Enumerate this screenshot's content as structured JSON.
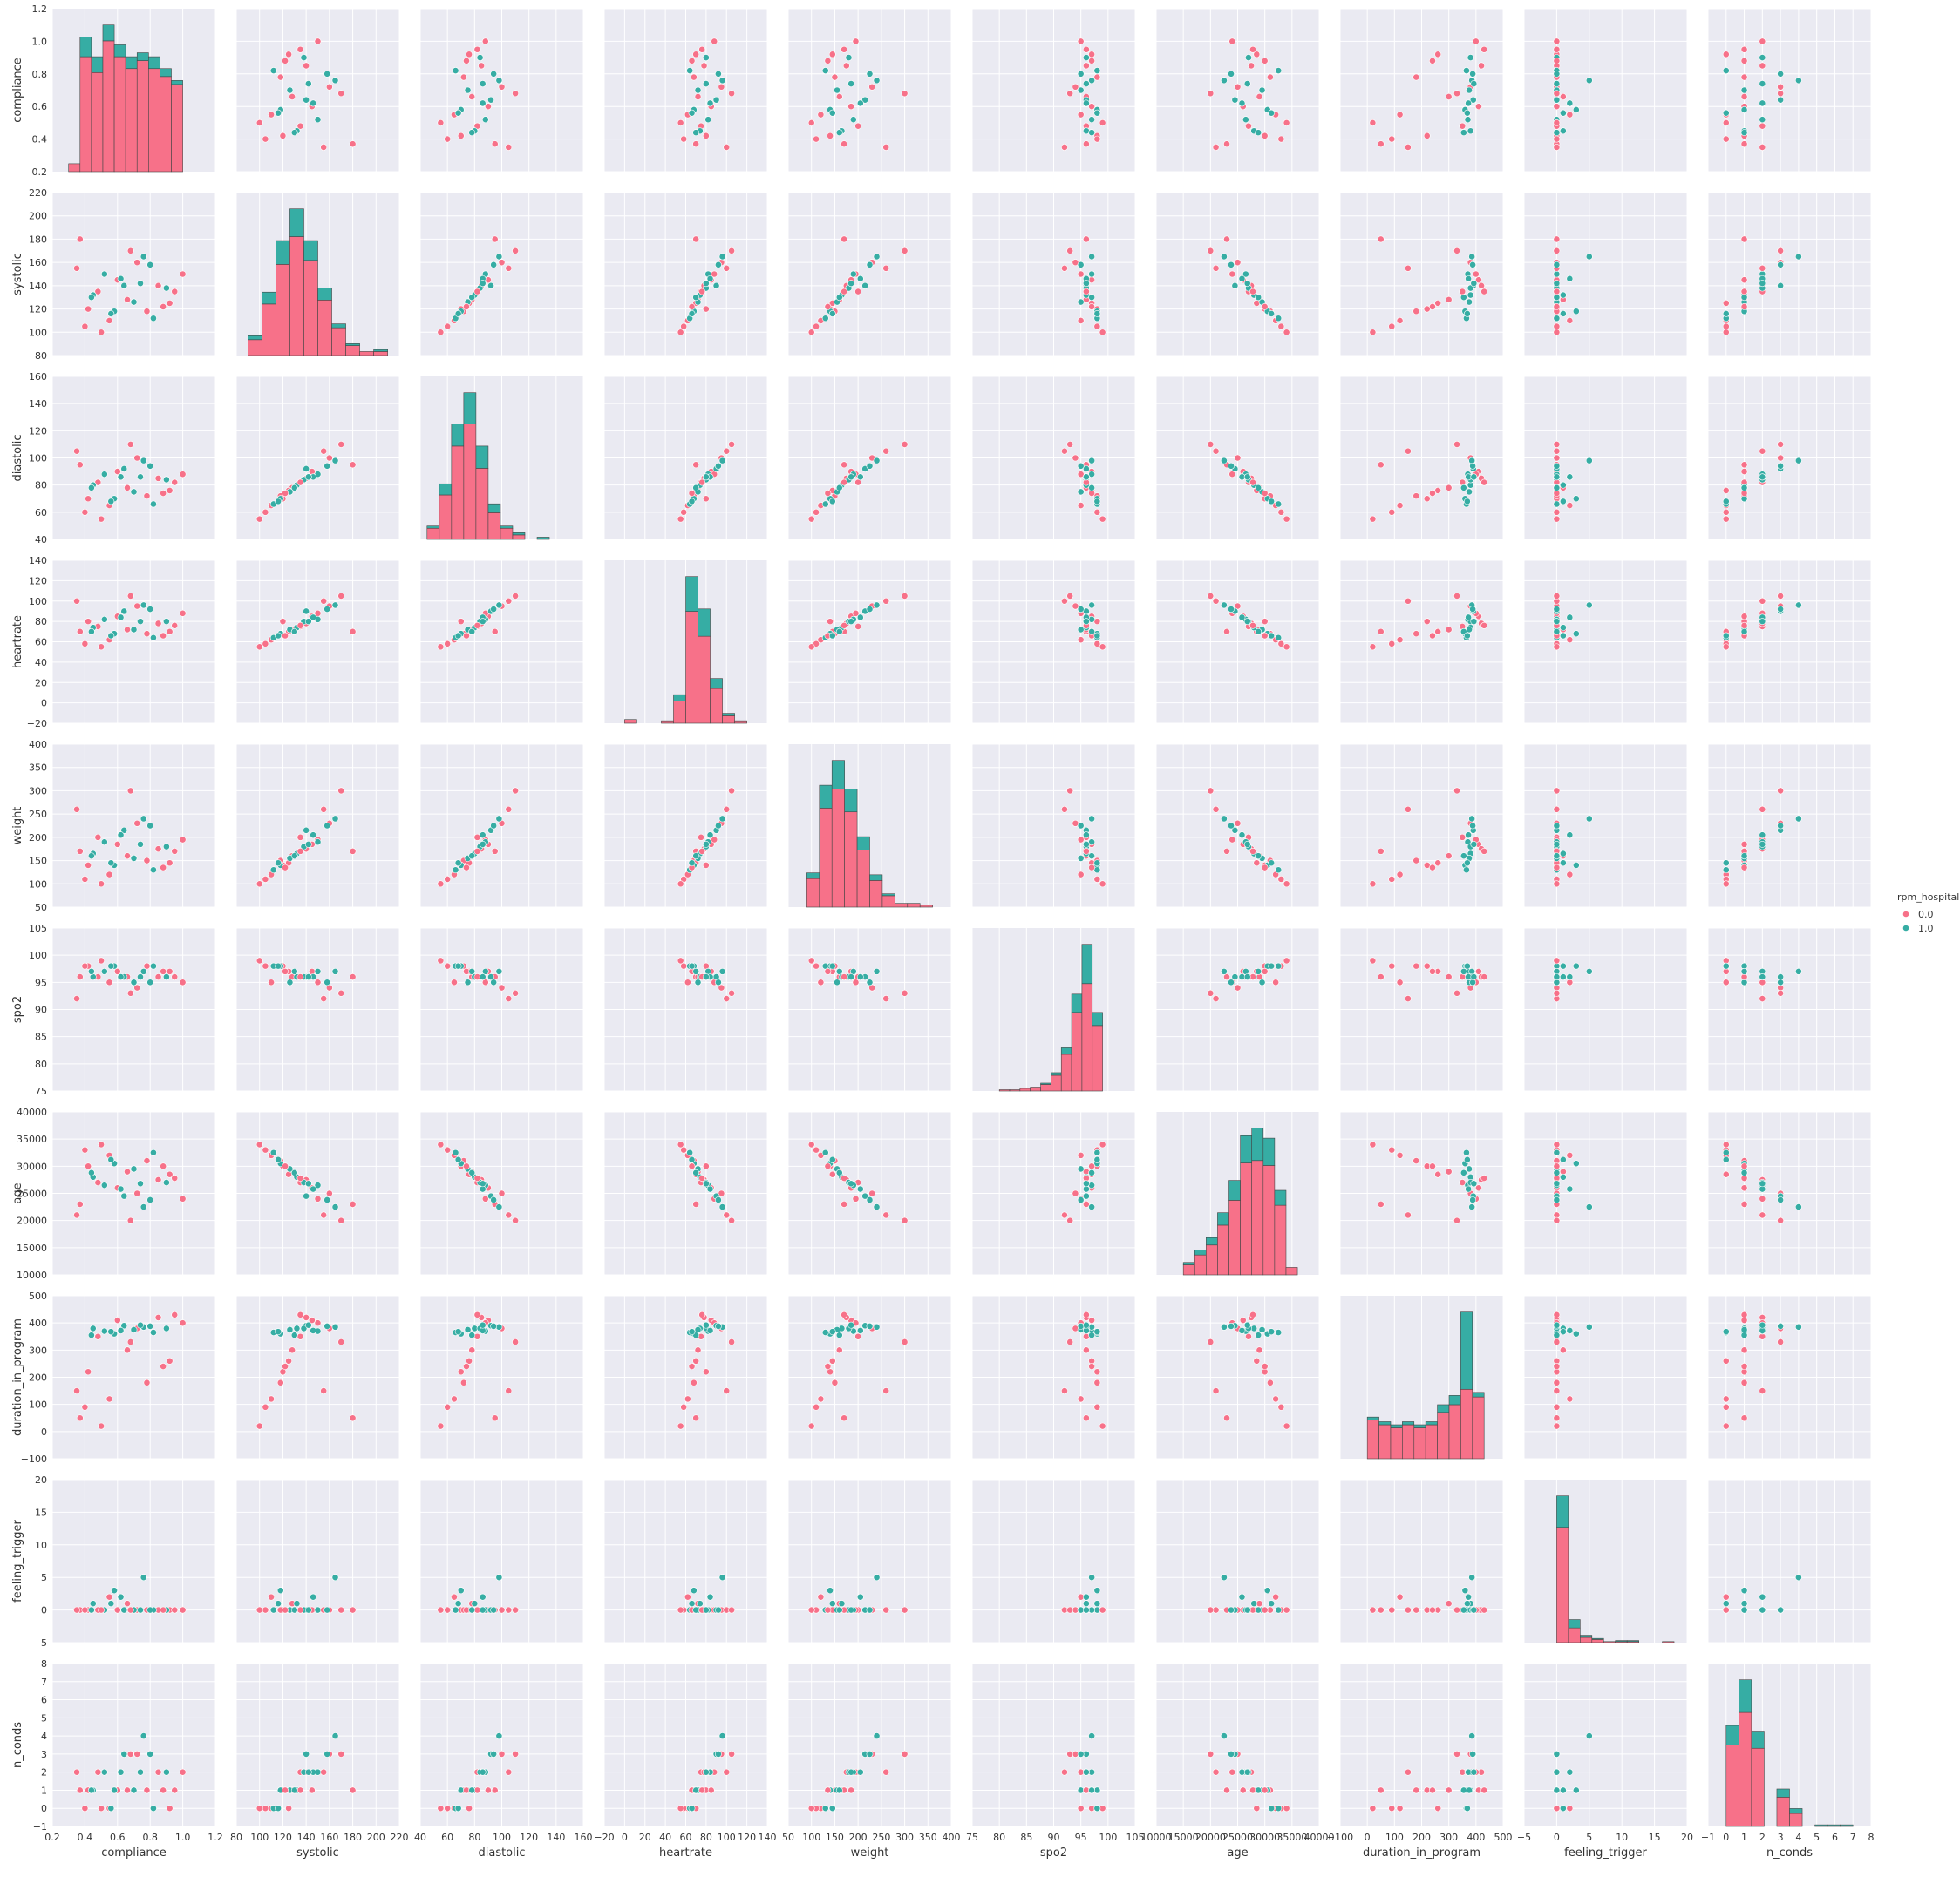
{
  "chart_data": {
    "type": "scatter",
    "variables": [
      {
        "name": "compliance",
        "range": [
          0.2,
          1.2
        ],
        "ticks": [
          0.2,
          0.4,
          0.6,
          0.8,
          1.0,
          1.2
        ],
        "tick_labels": [
          "0.2",
          "0.4",
          "0.6",
          "0.8",
          "1.0",
          "1.2"
        ]
      },
      {
        "name": "systolic",
        "range": [
          80,
          220
        ],
        "ticks": [
          80,
          100,
          120,
          140,
          160,
          180,
          200,
          220
        ],
        "tick_labels": [
          "80",
          "100",
          "120",
          "140",
          "160",
          "180",
          "200",
          "220"
        ]
      },
      {
        "name": "diastolic",
        "range": [
          40,
          160
        ],
        "ticks": [
          40,
          60,
          80,
          100,
          120,
          140,
          160
        ],
        "tick_labels": [
          "40",
          "60",
          "80",
          "100",
          "120",
          "140",
          "160"
        ]
      },
      {
        "name": "heartrate",
        "range": [
          -20,
          140
        ],
        "ticks": [
          -20,
          0,
          20,
          40,
          60,
          80,
          100,
          120,
          140
        ],
        "tick_labels": [
          "−20",
          "0",
          "20",
          "40",
          "60",
          "80",
          "100",
          "120",
          "140"
        ]
      },
      {
        "name": "weight",
        "range": [
          50,
          400
        ],
        "ticks": [
          50,
          100,
          150,
          200,
          250,
          300,
          350,
          400
        ],
        "tick_labels": [
          "50",
          "100",
          "150",
          "200",
          "250",
          "300",
          "350",
          "400"
        ]
      },
      {
        "name": "spo2",
        "range": [
          75,
          105
        ],
        "ticks": [
          75,
          80,
          85,
          90,
          95,
          100,
          105
        ],
        "tick_labels": [
          "75",
          "80",
          "85",
          "90",
          "95",
          "100",
          "105"
        ]
      },
      {
        "name": "age",
        "range": [
          10000,
          40000
        ],
        "ticks": [
          10000,
          15000,
          20000,
          25000,
          30000,
          35000,
          40000
        ],
        "tick_labels": [
          "10000",
          "15000",
          "20000",
          "25000",
          "30000",
          "35000",
          "40000"
        ]
      },
      {
        "name": "duration_in_program",
        "range": [
          -100,
          500
        ],
        "ticks": [
          -100,
          0,
          100,
          200,
          300,
          400,
          500
        ],
        "tick_labels": [
          "−100",
          "0",
          "100",
          "200",
          "300",
          "400",
          "500"
        ]
      },
      {
        "name": "feeling_trigger",
        "range": [
          -5,
          20
        ],
        "ticks": [
          -5,
          0,
          5,
          10,
          15,
          20
        ],
        "tick_labels": [
          "−5",
          "0",
          "5",
          "10",
          "15",
          "20"
        ]
      },
      {
        "name": "n_conds",
        "range": [
          -1,
          8
        ],
        "ticks": [
          -1,
          0,
          1,
          2,
          3,
          4,
          5,
          6,
          7,
          8
        ],
        "tick_labels": [
          "−1",
          "0",
          "1",
          "2",
          "3",
          "4",
          "5",
          "6",
          "7",
          "8"
        ]
      }
    ],
    "hue": {
      "title": "rpm_hospitalized",
      "levels": [
        "0.0",
        "1.0"
      ],
      "colors": [
        "#f77189",
        "#36ada4"
      ]
    },
    "diagonal": {
      "type": "histogram",
      "stacked": true,
      "series": [
        {
          "variable": "compliance",
          "bin_edges": [
            0.3,
            0.37,
            0.44,
            0.51,
            0.58,
            0.65,
            0.72,
            0.79,
            0.86,
            0.93,
            1.0
          ],
          "class0": [
            2,
            29,
            25,
            33,
            29,
            26,
            28,
            26,
            24,
            22
          ],
          "class1": [
            0,
            5,
            4,
            4,
            3,
            3,
            2,
            3,
            2,
            1
          ]
        },
        {
          "variable": "systolic",
          "bin_edges": [
            90,
            102,
            114,
            126,
            138,
            150,
            162,
            174,
            186,
            198,
            210
          ],
          "class0": [
            8,
            26,
            46,
            60,
            48,
            28,
            14,
            5,
            2,
            2
          ],
          "class1": [
            2,
            6,
            12,
            14,
            10,
            6,
            2,
            1,
            0,
            1
          ]
        },
        {
          "variable": "diastolic",
          "bin_edges": [
            45,
            54,
            63,
            72,
            81,
            90,
            99,
            108,
            117,
            126,
            135
          ],
          "class0": [
            5,
            20,
            42,
            52,
            32,
            12,
            5,
            2,
            0,
            0
          ],
          "class1": [
            1,
            5,
            10,
            14,
            10,
            4,
            1,
            1,
            0,
            1
          ]
        },
        {
          "variable": "heartrate",
          "bin_edges": [
            0,
            12,
            24,
            36,
            48,
            60,
            72,
            84,
            96,
            108,
            120
          ],
          "class0": [
            3,
            0,
            0,
            2,
            18,
            90,
            70,
            28,
            6,
            2
          ],
          "class1": [
            0,
            0,
            0,
            0,
            5,
            28,
            22,
            8,
            2,
            0
          ]
        },
        {
          "variable": "weight",
          "bin_edges": [
            90,
            117,
            144,
            171,
            198,
            225,
            252,
            279,
            306,
            333,
            360
          ],
          "class0": [
            15,
            52,
            62,
            50,
            30,
            14,
            6,
            2,
            2,
            1
          ],
          "class1": [
            3,
            12,
            15,
            12,
            7,
            3,
            1,
            0,
            0,
            0
          ]
        },
        {
          "variable": "spo2",
          "bin_edges": [
            80,
            81.9,
            83.8,
            85.7,
            87.6,
            89.5,
            91.4,
            93.3,
            95.2,
            97.1,
            99
          ],
          "class0": [
            1,
            1,
            2,
            3,
            5,
            12,
            28,
            60,
            82,
            50
          ],
          "class1": [
            0,
            0,
            0,
            0,
            1,
            2,
            5,
            14,
            30,
            10
          ]
        },
        {
          "variable": "age",
          "bin_edges": [
            15000,
            17100,
            19200,
            21300,
            23400,
            25500,
            27600,
            29700,
            31800,
            33900,
            36000
          ],
          "class0": [
            4,
            8,
            12,
            20,
            30,
            45,
            46,
            44,
            28,
            3
          ],
          "class1": [
            1,
            2,
            3,
            5,
            8,
            11,
            13,
            11,
            6,
            0
          ]
        },
        {
          "variable": "duration_in_program",
          "bin_edges": [
            0,
            43,
            86,
            129,
            172,
            215,
            258,
            301,
            344,
            387,
            430
          ],
          "class0": [
            25,
            22,
            20,
            22,
            20,
            22,
            30,
            35,
            45,
            40
          ],
          "class1": [
            2,
            2,
            2,
            2,
            2,
            2,
            5,
            6,
            50,
            3
          ]
        },
        {
          "variable": "feeling_trigger",
          "bin_edges": [
            0,
            1.8,
            3.6,
            5.4,
            7.2,
            9,
            10.8,
            12.6,
            14.4,
            16.2,
            18
          ],
          "class0": [
            110,
            14,
            5,
            3,
            1,
            1,
            1,
            0,
            0,
            1
          ],
          "class1": [
            30,
            8,
            2,
            1,
            0,
            1,
            1,
            0,
            0,
            0
          ]
        },
        {
          "variable": "n_conds",
          "bin_edges": [
            0,
            0.7,
            1.4,
            2.1,
            2.8,
            3.5,
            4.2,
            4.9,
            5.6,
            6.3,
            7
          ],
          "class0": [
            50,
            70,
            48,
            0,
            18,
            8,
            0,
            0,
            0,
            0
          ],
          "class1": [
            12,
            20,
            10,
            0,
            5,
            3,
            0,
            1,
            1,
            1
          ]
        }
      ]
    },
    "offdiagonal": {
      "type": "scatter",
      "marker": "circle",
      "edgecolor": "#ffffff"
    },
    "observations": {
      "columns": [
        "compliance",
        "systolic",
        "diastolic",
        "heartrate",
        "weight",
        "spo2",
        "age",
        "duration_in_program",
        "feeling_trigger",
        "n_conds",
        "rpm_hospitalized"
      ],
      "rows": [
        [
          0.37,
          180,
          95,
          70,
          170,
          96,
          23000,
          50,
          0,
          1,
          0
        ],
        [
          0.42,
          120,
          70,
          80,
          140,
          98,
          30000,
          220,
          0,
          1,
          0
        ],
        [
          0.48,
          135,
          82,
          75,
          200,
          96,
          27000,
          350,
          0,
          2,
          0
        ],
        [
          0.55,
          110,
          65,
          62,
          120,
          95,
          32000,
          120,
          2,
          0,
          0
        ],
        [
          0.6,
          145,
          90,
          85,
          185,
          97,
          26000,
          410,
          0,
          1,
          0
        ],
        [
          0.66,
          128,
          78,
          72,
          160,
          96,
          29000,
          300,
          1,
          1,
          0
        ],
        [
          0.72,
          160,
          100,
          95,
          230,
          94,
          25000,
          380,
          0,
          3,
          0
        ],
        [
          0.78,
          118,
          72,
          68,
          150,
          98,
          31000,
          180,
          0,
          1,
          0
        ],
        [
          0.85,
          140,
          85,
          78,
          175,
          96,
          27500,
          420,
          0,
          2,
          0
        ],
        [
          0.92,
          125,
          76,
          70,
          145,
          97,
          28500,
          260,
          0,
          0,
          0
        ],
        [
          1.0,
          150,
          88,
          88,
          195,
          95,
          24000,
          400,
          0,
          2,
          0
        ],
        [
          0.4,
          105,
          60,
          58,
          110,
          98,
          33000,
          90,
          0,
          0,
          0
        ],
        [
          0.45,
          132,
          80,
          74,
          165,
          96,
          28000,
          380,
          1,
          1,
          1
        ],
        [
          0.52,
          150,
          88,
          82,
          190,
          97,
          26500,
          370,
          0,
          2,
          1
        ],
        [
          0.58,
          118,
          70,
          68,
          140,
          98,
          30500,
          360,
          3,
          1,
          1
        ],
        [
          0.64,
          140,
          92,
          90,
          215,
          96,
          24500,
          390,
          0,
          3,
          1
        ],
        [
          0.7,
          126,
          75,
          72,
          155,
          95,
          29500,
          375,
          0,
          1,
          1
        ],
        [
          0.76,
          165,
          98,
          96,
          240,
          97,
          22500,
          385,
          5,
          4,
          1
        ],
        [
          0.82,
          112,
          66,
          64,
          130,
          98,
          32500,
          365,
          0,
          0,
          1
        ],
        [
          0.9,
          138,
          84,
          80,
          180,
          96,
          27000,
          380,
          0,
          2,
          1
        ],
        [
          0.35,
          155,
          105,
          100,
          260,
          92,
          21000,
          150,
          0,
          2,
          0
        ],
        [
          0.5,
          100,
          55,
          55,
          100,
          99,
          34000,
          20,
          0,
          0,
          0
        ],
        [
          0.68,
          170,
          110,
          105,
          300,
          93,
          20000,
          330,
          0,
          3,
          0
        ],
        [
          0.88,
          122,
          74,
          66,
          135,
          97,
          30000,
          240,
          0,
          1,
          0
        ],
        [
          0.95,
          135,
          82,
          76,
          170,
          96,
          27800,
          430,
          0,
          1,
          0
        ],
        [
          0.62,
          146,
          86,
          84,
          205,
          96,
          25800,
          372,
          2,
          2,
          1
        ],
        [
          0.44,
          130,
          78,
          70,
          160,
          97,
          28800,
          355,
          0,
          1,
          1
        ],
        [
          0.8,
          158,
          94,
          92,
          225,
          95,
          23800,
          388,
          0,
          3,
          1
        ],
        [
          0.56,
          116,
          68,
          66,
          145,
          98,
          31200,
          368,
          1,
          0,
          1
        ],
        [
          0.74,
          142,
          86,
          80,
          185,
          96,
          26800,
          392,
          0,
          2,
          1
        ]
      ]
    }
  }
}
